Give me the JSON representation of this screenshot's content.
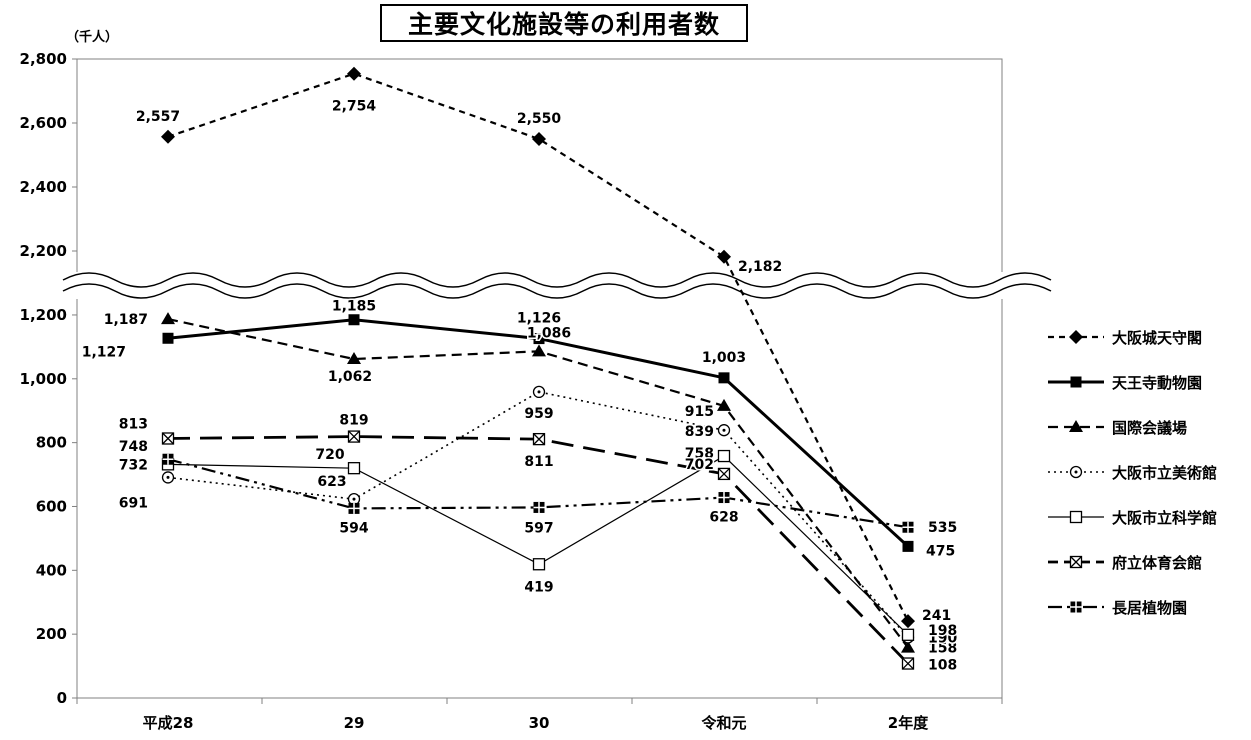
{
  "chart_data": {
    "type": "line",
    "title": "主要文化施設等の利用者数",
    "unit_label": "（千人）",
    "categories": [
      "平成28",
      "29",
      "30",
      "令和元",
      "2年度"
    ],
    "y_ticks_lower": [
      "0",
      "200",
      "400",
      "600",
      "800",
      "1,000",
      "1,200"
    ],
    "y_ticks_upper": [
      "2,200",
      "2,400",
      "2,600",
      "2,800"
    ],
    "ylim_lower": [
      0,
      1250
    ],
    "ylim_upper": [
      2150,
      2800
    ],
    "axis_break": true,
    "grid": false,
    "legend_position": "right",
    "series": [
      {
        "name": "大阪城天守閣",
        "values": [
          2557,
          2754,
          2550,
          2182,
          241
        ],
        "labels": [
          "2,557",
          "2,754",
          "2,550",
          "2,182",
          "241"
        ],
        "color": "#000000"
      },
      {
        "name": "天王寺動物園",
        "values": [
          1127,
          1185,
          1126,
          1003,
          475
        ],
        "labels": [
          "1,127",
          "1,185",
          "1,126",
          "1,003",
          "475"
        ],
        "color": "#000000"
      },
      {
        "name": "国際会議場",
        "values": [
          1187,
          1062,
          1086,
          915,
          158
        ],
        "labels": [
          "1,187",
          "1,062",
          "1,086",
          "915",
          "158"
        ],
        "color": "#000000"
      },
      {
        "name": "大阪市立美術館",
        "values": [
          691,
          623,
          959,
          839,
          190
        ],
        "labels": [
          "691",
          "623",
          "959",
          "839",
          "190"
        ],
        "color": "#000000"
      },
      {
        "name": "大阪市立科学館",
        "values": [
          732,
          720,
          419,
          758,
          198
        ],
        "labels": [
          "732",
          "720",
          "419",
          "758",
          "198"
        ],
        "color": "#000000"
      },
      {
        "name": "府立体育会館",
        "values": [
          813,
          819,
          811,
          702,
          108
        ],
        "labels": [
          "813",
          "819",
          "811",
          "702",
          "108"
        ],
        "color": "#000000"
      },
      {
        "name": "長居植物園",
        "values": [
          748,
          594,
          597,
          628,
          535
        ],
        "labels": [
          "748",
          "594",
          "597",
          "628",
          "535"
        ],
        "color": "#000000"
      }
    ]
  }
}
